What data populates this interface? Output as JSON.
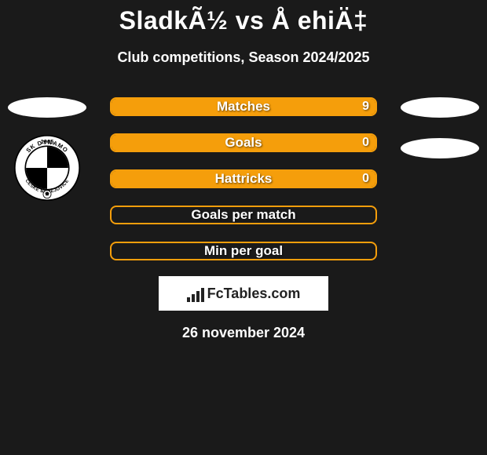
{
  "title": "SladkÃ½ vs Å ehiÄ‡",
  "subtitle": "Club competitions, Season 2024/2025",
  "rows": [
    {
      "label": "Matches",
      "value": "9",
      "filled": true
    },
    {
      "label": "Goals",
      "value": "0",
      "filled": true
    },
    {
      "label": "Hattricks",
      "value": "0",
      "filled": true
    },
    {
      "label": "Goals per match",
      "value": "",
      "filled": false
    },
    {
      "label": "Min per goal",
      "value": "",
      "filled": false
    }
  ],
  "footer_brand": "FcTables.com",
  "date": "26 november 2024",
  "colors": {
    "background": "#1a1a1a",
    "bar_outline": "#f59e0b",
    "bar_fill": "#f59e0b",
    "text": "#ffffff",
    "footer_text": "#222222",
    "ellipse": "#ffffff"
  },
  "badge": {
    "year": "1905",
    "ring_top": "SK DYNAMO",
    "ring_bottom": "ČESKÉ BUDĚJOVICE"
  }
}
